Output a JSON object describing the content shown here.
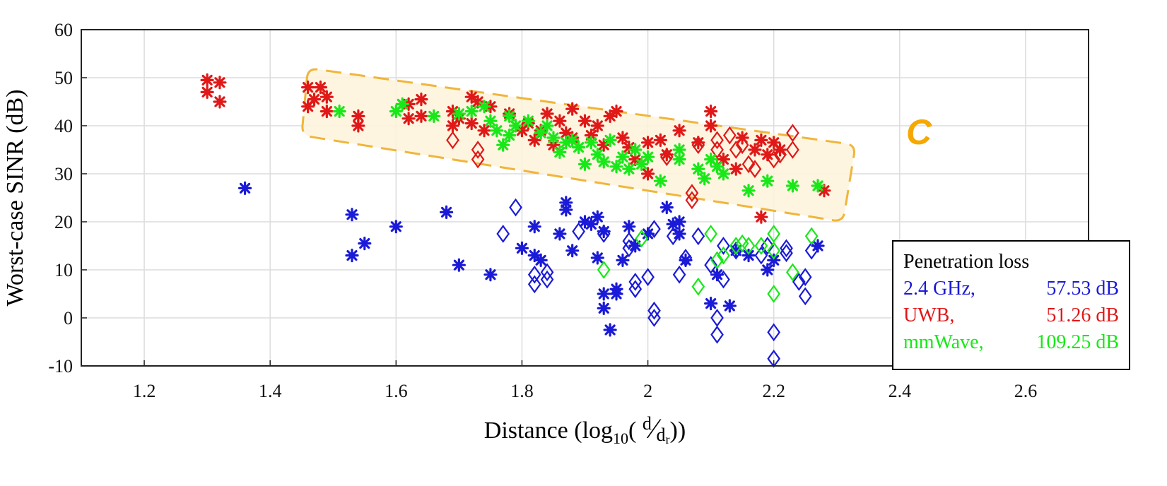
{
  "chart_data": {
    "type": "scatter",
    "title": "",
    "xlabel_main": "Distance (log",
    "xlabel_sub": "10",
    "xlabel_frac_num": "d",
    "xlabel_frac_den": "d",
    "xlabel_frac_den_sub": "r",
    "xlabel_close": "))",
    "ylabel": "Worst-case SINR (dB)",
    "xlim": [
      1.1,
      2.7
    ],
    "ylim": [
      -10,
      60
    ],
    "xticks": [
      1.2,
      1.4,
      1.6,
      1.8,
      2.0,
      2.2,
      2.4,
      2.6
    ],
    "xtick_labels": [
      "1.2",
      "1.4",
      "1.6",
      "1.8",
      "2",
      "2.2",
      "2.4",
      "2.6"
    ],
    "yticks": [
      -10,
      0,
      10,
      20,
      30,
      40,
      50,
      60
    ],
    "ytick_labels": [
      "-10",
      "0",
      "10",
      "20",
      "30",
      "40",
      "50",
      "60"
    ],
    "grid": true,
    "region_label": "C",
    "region_polygon": [
      [
        1.46,
        52
      ],
      [
        2.33,
        36
      ],
      [
        2.31,
        20
      ],
      [
        1.45,
        38
      ]
    ],
    "legend_title": "Penetration loss",
    "legend_position": "bottom-right",
    "series": [
      {
        "name": "2.4 GHz,",
        "loss": "57.53 dB",
        "color": "#1a1ad8",
        "asterisk": [
          [
            1.36,
            27
          ],
          [
            1.53,
            21.5
          ],
          [
            1.53,
            13
          ],
          [
            1.55,
            15.5
          ],
          [
            1.6,
            19
          ],
          [
            1.68,
            22
          ],
          [
            1.7,
            11
          ],
          [
            1.75,
            9
          ],
          [
            1.8,
            14.5
          ],
          [
            1.82,
            13
          ],
          [
            1.82,
            19
          ],
          [
            1.83,
            12
          ],
          [
            1.86,
            17.5
          ],
          [
            1.87,
            24
          ],
          [
            1.87,
            22.5
          ],
          [
            1.88,
            14
          ],
          [
            1.9,
            20
          ],
          [
            1.91,
            19.5
          ],
          [
            1.92,
            21
          ],
          [
            1.92,
            12.5
          ],
          [
            1.93,
            5
          ],
          [
            1.93,
            2
          ],
          [
            1.93,
            18
          ],
          [
            1.94,
            -2.5
          ],
          [
            1.95,
            6
          ],
          [
            1.95,
            5
          ],
          [
            1.96,
            12
          ],
          [
            1.97,
            19
          ],
          [
            1.98,
            15
          ],
          [
            2.0,
            17.5
          ],
          [
            2.03,
            23
          ],
          [
            2.04,
            19.5
          ],
          [
            2.05,
            20
          ],
          [
            2.05,
            17.5
          ],
          [
            2.06,
            12
          ],
          [
            2.1,
            3
          ],
          [
            2.11,
            9
          ],
          [
            2.13,
            2.5
          ],
          [
            2.14,
            14
          ],
          [
            2.16,
            13
          ],
          [
            2.19,
            10
          ],
          [
            2.2,
            12
          ],
          [
            2.27,
            15
          ]
        ],
        "diamond": [
          [
            1.77,
            17.5
          ],
          [
            1.79,
            23
          ],
          [
            1.82,
            7
          ],
          [
            1.82,
            9
          ],
          [
            1.84,
            8
          ],
          [
            1.84,
            9.5
          ],
          [
            1.89,
            18
          ],
          [
            1.93,
            17.5
          ],
          [
            1.97,
            14.5
          ],
          [
            1.98,
            6
          ],
          [
            1.98,
            7.5
          ],
          [
            1.97,
            16
          ],
          [
            2.0,
            8.5
          ],
          [
            2.01,
            18.5
          ],
          [
            2.01,
            1.5
          ],
          [
            2.01,
            0
          ],
          [
            2.04,
            17
          ],
          [
            2.05,
            9
          ],
          [
            2.06,
            12.5
          ],
          [
            2.08,
            17
          ],
          [
            2.1,
            11
          ],
          [
            2.11,
            0
          ],
          [
            2.11,
            -3.5
          ],
          [
            2.12,
            8
          ],
          [
            2.12,
            15
          ],
          [
            2.14,
            14
          ],
          [
            2.18,
            13
          ],
          [
            2.19,
            15
          ],
          [
            2.2,
            -3
          ],
          [
            2.2,
            -8.5
          ],
          [
            2.22,
            13.5
          ],
          [
            2.22,
            14.5
          ],
          [
            2.24,
            7.5
          ],
          [
            2.25,
            8.5
          ],
          [
            2.25,
            4.5
          ],
          [
            2.26,
            14
          ]
        ]
      },
      {
        "name": "UWB,",
        "loss": "51.26 dB",
        "color": "#e01818",
        "asterisk": [
          [
            1.3,
            49.5
          ],
          [
            1.3,
            47
          ],
          [
            1.32,
            49
          ],
          [
            1.32,
            45
          ],
          [
            1.46,
            48
          ],
          [
            1.46,
            44
          ],
          [
            1.47,
            45.5
          ],
          [
            1.48,
            48
          ],
          [
            1.49,
            46
          ],
          [
            1.49,
            43
          ],
          [
            1.54,
            42
          ],
          [
            1.54,
            40
          ],
          [
            1.62,
            44.5
          ],
          [
            1.62,
            41.5
          ],
          [
            1.64,
            45.5
          ],
          [
            1.64,
            42
          ],
          [
            1.69,
            43
          ],
          [
            1.69,
            40
          ],
          [
            1.7,
            41.5
          ],
          [
            1.72,
            46
          ],
          [
            1.73,
            45
          ],
          [
            1.72,
            40.5
          ],
          [
            1.74,
            39
          ],
          [
            1.75,
            44
          ],
          [
            1.78,
            42.5
          ],
          [
            1.8,
            39
          ],
          [
            1.81,
            40.5
          ],
          [
            1.82,
            37
          ],
          [
            1.83,
            39
          ],
          [
            1.84,
            42.5
          ],
          [
            1.85,
            36
          ],
          [
            1.86,
            41
          ],
          [
            1.87,
            38.5
          ],
          [
            1.88,
            43.5
          ],
          [
            1.88,
            37.5
          ],
          [
            1.9,
            41
          ],
          [
            1.91,
            38
          ],
          [
            1.92,
            40
          ],
          [
            1.93,
            36
          ],
          [
            1.94,
            42
          ],
          [
            1.95,
            43
          ],
          [
            1.96,
            37.5
          ],
          [
            1.97,
            35.5
          ],
          [
            1.98,
            33
          ],
          [
            2.0,
            36.5
          ],
          [
            2.0,
            30
          ],
          [
            2.02,
            37
          ],
          [
            2.03,
            34
          ],
          [
            2.05,
            39
          ],
          [
            2.08,
            36.5
          ],
          [
            2.1,
            43
          ],
          [
            2.1,
            40
          ],
          [
            2.12,
            33
          ],
          [
            2.14,
            31
          ],
          [
            2.15,
            37.5
          ],
          [
            2.17,
            35
          ],
          [
            2.18,
            37
          ],
          [
            2.19,
            34
          ],
          [
            2.2,
            36.5
          ],
          [
            2.21,
            35
          ],
          [
            2.28,
            26.5
          ],
          [
            2.18,
            21
          ]
        ],
        "diamond": [
          [
            1.69,
            37
          ],
          [
            1.73,
            35
          ],
          [
            1.73,
            33
          ],
          [
            2.03,
            33.5
          ],
          [
            2.07,
            24.5
          ],
          [
            2.07,
            26
          ],
          [
            2.08,
            36
          ],
          [
            2.11,
            37
          ],
          [
            2.11,
            35
          ],
          [
            2.13,
            38
          ],
          [
            2.14,
            35
          ],
          [
            2.15,
            36
          ],
          [
            2.16,
            32
          ],
          [
            2.17,
            31
          ],
          [
            2.2,
            33
          ],
          [
            2.21,
            34
          ],
          [
            2.23,
            38.5
          ],
          [
            2.23,
            35
          ]
        ]
      },
      {
        "name": "mmWave,",
        "loss": "109.25 dB",
        "color": "#18e818",
        "asterisk": [
          [
            1.51,
            43
          ],
          [
            1.6,
            43
          ],
          [
            1.61,
            44.5
          ],
          [
            1.66,
            42
          ],
          [
            1.7,
            42.5
          ],
          [
            1.72,
            43
          ],
          [
            1.74,
            44
          ],
          [
            1.75,
            41
          ],
          [
            1.76,
            39
          ],
          [
            1.77,
            36
          ],
          [
            1.78,
            38
          ],
          [
            1.78,
            42
          ],
          [
            1.79,
            40
          ],
          [
            1.81,
            41
          ],
          [
            1.83,
            38.5
          ],
          [
            1.84,
            40
          ],
          [
            1.85,
            37.5
          ],
          [
            1.86,
            34.5
          ],
          [
            1.87,
            36.5
          ],
          [
            1.88,
            37
          ],
          [
            1.89,
            35.5
          ],
          [
            1.9,
            32
          ],
          [
            1.91,
            36.5
          ],
          [
            1.92,
            34
          ],
          [
            1.93,
            32.5
          ],
          [
            1.94,
            37
          ],
          [
            1.95,
            31.5
          ],
          [
            1.96,
            33.5
          ],
          [
            1.97,
            31
          ],
          [
            1.98,
            35
          ],
          [
            1.99,
            32
          ],
          [
            2.0,
            33.5
          ],
          [
            2.02,
            28.5
          ],
          [
            2.05,
            33
          ],
          [
            2.05,
            35
          ],
          [
            2.08,
            31
          ],
          [
            2.09,
            29
          ],
          [
            2.1,
            33
          ],
          [
            2.11,
            31.5
          ],
          [
            2.12,
            30
          ],
          [
            2.16,
            26.5
          ],
          [
            2.19,
            28.5
          ],
          [
            2.23,
            27.5
          ],
          [
            2.27,
            27.5
          ]
        ],
        "diamond": [
          [
            1.93,
            10
          ],
          [
            1.99,
            16.5
          ],
          [
            2.08,
            6.5
          ],
          [
            2.1,
            17.5
          ],
          [
            2.11,
            12
          ],
          [
            2.12,
            13
          ],
          [
            2.14,
            15
          ],
          [
            2.15,
            15.5
          ],
          [
            2.16,
            15
          ],
          [
            2.18,
            15
          ],
          [
            2.2,
            17.5
          ],
          [
            2.2,
            5
          ],
          [
            2.2,
            14
          ],
          [
            2.23,
            9.5
          ],
          [
            2.26,
            17
          ]
        ]
      }
    ]
  }
}
